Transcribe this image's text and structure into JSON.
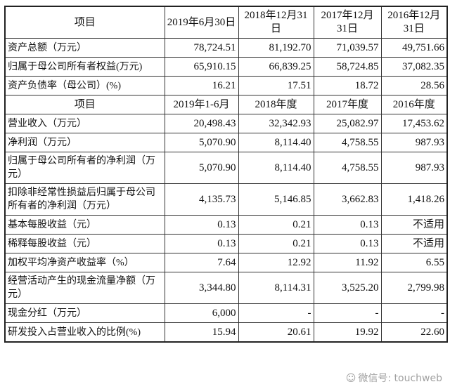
{
  "header1": {
    "item": "项目",
    "cols": [
      "2019年6月30日",
      "2018年12月31日",
      "2017年12月31日",
      "2016年12月31日"
    ]
  },
  "balance_rows": [
    {
      "label": "资产总额（万元）",
      "values": [
        "78,724.51",
        "81,192.70",
        "71,039.57",
        "49,751.66"
      ]
    },
    {
      "label": "归属于母公司所有者权益(万元)",
      "values": [
        "65,910.15",
        "66,839.25",
        "58,724.85",
        "37,082.35"
      ]
    },
    {
      "label": "资产负债率（母公司）(%)",
      "values": [
        "16.21",
        "17.51",
        "18.72",
        "28.56"
      ]
    }
  ],
  "header2": {
    "item": "项目",
    "cols": [
      "2019年1-6月",
      "2018年度",
      "2017年度",
      "2016年度"
    ]
  },
  "income_rows": [
    {
      "label": "营业收入（万元）",
      "values": [
        "20,498.43",
        "32,342.93",
        "25,082.97",
        "17,453.62"
      ]
    },
    {
      "label": "净利润（万元）",
      "values": [
        "5,070.90",
        "8,114.40",
        "4,758.55",
        "987.93"
      ]
    },
    {
      "label": "归属于母公司所有者的净利润（万元）",
      "values": [
        "5,070.90",
        "8,114.40",
        "4,758.55",
        "987.93"
      ]
    },
    {
      "label": "扣除非经常性损益后归属于母公司所有者的净利润（万元）",
      "values": [
        "4,135.73",
        "5,146.85",
        "3,662.83",
        "1,418.26"
      ]
    },
    {
      "label": "基本每股收益（元）",
      "values": [
        "0.13",
        "0.21",
        "0.13",
        "不适用"
      ]
    },
    {
      "label": "稀释每股收益（元）",
      "values": [
        "0.13",
        "0.21",
        "0.13",
        "不适用"
      ]
    },
    {
      "label": "加权平均净资产收益率（%）",
      "values": [
        "7.64",
        "12.92",
        "11.92",
        "6.55"
      ]
    },
    {
      "label": "经营活动产生的现金流量净额（万元）",
      "values": [
        "3,344.80",
        "8,114.31",
        "3,525.20",
        "2,799.98"
      ]
    },
    {
      "label": "现金分红（万元）",
      "values": [
        "6,000",
        "-",
        "-",
        "-"
      ]
    },
    {
      "label": "研发投入占营业收入的比例(%)",
      "values": [
        "15.94",
        "20.61",
        "19.92",
        "22.60"
      ]
    }
  ],
  "watermark": {
    "icon": "wechat-icon",
    "text": "微信号: touchweb"
  }
}
